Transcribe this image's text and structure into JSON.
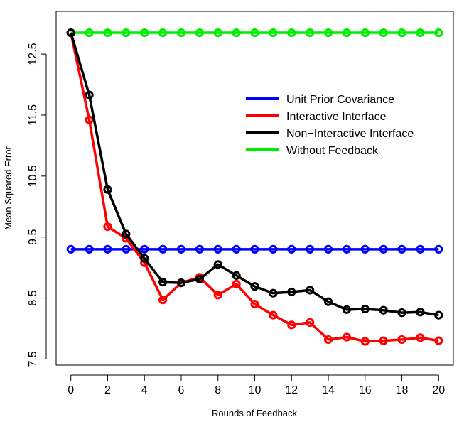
{
  "chart_data": {
    "type": "line",
    "title": "",
    "xlabel": "Rounds of Feedback",
    "ylabel": "Mean Squared Error",
    "xlim": [
      -0.8,
      20.8
    ],
    "ylim": [
      7.4,
      13.2
    ],
    "xticks": [
      0,
      2,
      4,
      6,
      8,
      10,
      12,
      14,
      16,
      18,
      20
    ],
    "xtick_labels": [
      "0",
      "2",
      "4",
      "6",
      "8",
      "10",
      "12",
      "14",
      "16",
      "18",
      "20"
    ],
    "yticks": [
      7.5,
      8.5,
      9.5,
      10.5,
      11.5,
      12.5
    ],
    "ytick_labels": [
      "7.5",
      "8.5",
      "9.5",
      "10.5",
      "11.5",
      "12.5"
    ],
    "grid": false,
    "legend_position": "right",
    "x": [
      0,
      1,
      2,
      3,
      4,
      5,
      6,
      7,
      8,
      9,
      10,
      11,
      12,
      13,
      14,
      15,
      16,
      17,
      18,
      19,
      20
    ],
    "series": [
      {
        "name": "Unit Prior Covariance",
        "color": "#0000ff",
        "values": [
          9.3,
          9.3,
          9.3,
          9.3,
          9.3,
          9.3,
          9.3,
          9.3,
          9.3,
          9.3,
          9.3,
          9.3,
          9.3,
          9.3,
          9.3,
          9.3,
          9.3,
          9.3,
          9.3,
          9.3,
          9.3
        ]
      },
      {
        "name": "Interactive Interface",
        "color": "#ff0000",
        "values": [
          12.85,
          11.42,
          9.67,
          9.48,
          9.08,
          8.47,
          8.75,
          8.84,
          8.55,
          8.73,
          8.4,
          8.22,
          8.06,
          8.1,
          7.82,
          7.86,
          7.79,
          7.8,
          7.82,
          7.85,
          7.8
        ]
      },
      {
        "name": "Non−Interactive Interface",
        "color": "#000000",
        "values": [
          12.85,
          11.83,
          10.28,
          9.55,
          9.15,
          8.76,
          8.75,
          8.81,
          9.05,
          8.87,
          8.69,
          8.58,
          8.6,
          8.63,
          8.44,
          8.31,
          8.32,
          8.3,
          8.26,
          8.27,
          8.22
        ]
      },
      {
        "name": "Without Feedback",
        "color": "#00ee00",
        "values": [
          12.85,
          12.85,
          12.85,
          12.85,
          12.85,
          12.85,
          12.85,
          12.85,
          12.85,
          12.85,
          12.85,
          12.85,
          12.85,
          12.85,
          12.85,
          12.85,
          12.85,
          12.85,
          12.85,
          12.85,
          12.85
        ]
      }
    ]
  }
}
